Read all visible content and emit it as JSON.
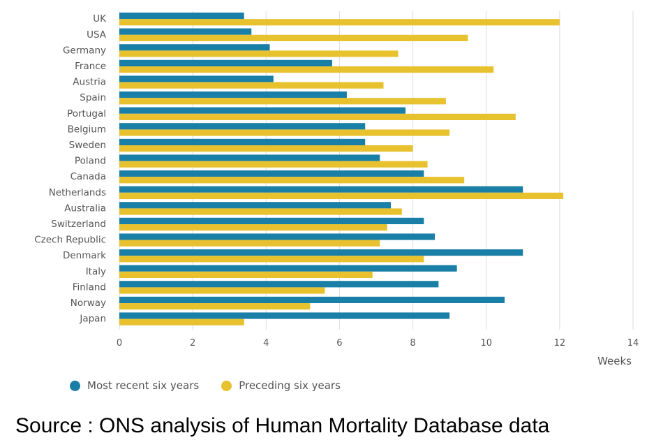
{
  "chart_data": {
    "type": "bar",
    "orientation": "horizontal",
    "title": "",
    "xlabel": "Weeks",
    "ylabel": "",
    "xlim": [
      0,
      14
    ],
    "x_ticks": [
      "0",
      "2",
      "4",
      "6",
      "8",
      "10",
      "12",
      "14"
    ],
    "grid": true,
    "categories": [
      "UK",
      "USA",
      "Germany",
      "France",
      "Austria",
      "Spain",
      "Portugal",
      "Belgium",
      "Sweden",
      "Poland",
      "Canada",
      "Netherlands",
      "Australia",
      "Switzerland",
      "Czech Republic",
      "Denmark",
      "Italy",
      "Finland",
      "Norway",
      "Japan"
    ],
    "series": [
      {
        "name": "Most recent six years",
        "color": "#1a7fa6",
        "values": [
          3.4,
          3.6,
          4.1,
          5.8,
          4.2,
          6.2,
          7.8,
          6.7,
          6.7,
          7.1,
          8.3,
          11.0,
          7.4,
          8.3,
          8.6,
          11.0,
          9.2,
          8.7,
          10.5,
          9.0
        ]
      },
      {
        "name": "Preceding six years",
        "color": "#e8c12e",
        "values": [
          12.0,
          9.5,
          7.6,
          10.2,
          7.2,
          8.9,
          10.8,
          9.0,
          8.0,
          8.4,
          9.4,
          12.1,
          7.7,
          7.3,
          7.1,
          8.3,
          6.9,
          5.6,
          5.2,
          3.4
        ]
      }
    ],
    "legend_position": "bottom-left"
  },
  "source_text": "Source : ONS analysis of Human Mortality Database data"
}
